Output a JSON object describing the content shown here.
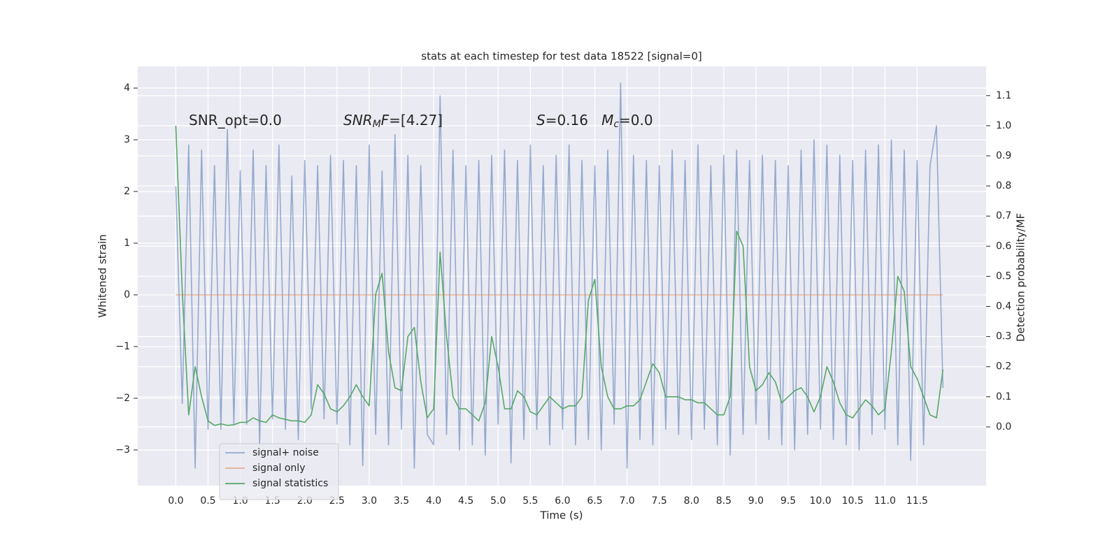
{
  "chart_data": {
    "type": "line",
    "title": "stats at each timestep for test data 18522 [signal=0]",
    "x_label": "Time (s)",
    "y_label": "Whitened strain",
    "y2_label": "Detection probability/MF",
    "annotations": [
      {
        "parts": [
          {
            "text": "SNR_opt=0.0",
            "italic": false,
            "sub": false
          }
        ]
      },
      {
        "parts": [
          {
            "text": "SNR",
            "italic": true,
            "sub": false
          },
          {
            "text": "M",
            "italic": true,
            "sub": true
          },
          {
            "text": "F",
            "italic": true,
            "sub": false
          },
          {
            "text": "=[4.27]",
            "italic": false,
            "sub": false
          }
        ]
      },
      {
        "parts": [
          {
            "text": "S",
            "italic": true,
            "sub": false
          },
          {
            "text": "=0.16   ",
            "italic": false,
            "sub": false
          },
          {
            "text": "M",
            "italic": true,
            "sub": false
          },
          {
            "text": "c",
            "italic": true,
            "sub": true
          },
          {
            "text": "=0.0",
            "italic": false,
            "sub": false
          }
        ]
      }
    ],
    "x": [
      0,
      0.1,
      0.2,
      0.3,
      0.4,
      0.5,
      0.6,
      0.7,
      0.8,
      0.9,
      1,
      1.1,
      1.2,
      1.3,
      1.4,
      1.5,
      1.6,
      1.7,
      1.8,
      1.9,
      2,
      2.1,
      2.2,
      2.3,
      2.4,
      2.5,
      2.6,
      2.7,
      2.8,
      2.9,
      3,
      3.1,
      3.2,
      3.3,
      3.4,
      3.5,
      3.6,
      3.7,
      3.8,
      3.9,
      4,
      4.1,
      4.2,
      4.3,
      4.4,
      4.5,
      4.6,
      4.7,
      4.8,
      4.9,
      5,
      5.1,
      5.2,
      5.3,
      5.4,
      5.5,
      5.6,
      5.7,
      5.8,
      5.9,
      6,
      6.1,
      6.2,
      6.3,
      6.4,
      6.5,
      6.6,
      6.7,
      6.8,
      6.9,
      7,
      7.1,
      7.2,
      7.3,
      7.4,
      7.5,
      7.6,
      7.7,
      7.8,
      7.9,
      8,
      8.1,
      8.2,
      8.3,
      8.4,
      8.5,
      8.6,
      8.7,
      8.8,
      8.9,
      9,
      9.1,
      9.2,
      9.3,
      9.4,
      9.5,
      9.6,
      9.7,
      9.8,
      9.9,
      10,
      10.1,
      10.2,
      10.3,
      10.4,
      10.5,
      10.6,
      10.7,
      10.8,
      10.9,
      11,
      11.1,
      11.2,
      11.3,
      11.4,
      11.5,
      11.6,
      11.7,
      11.8,
      11.9
    ],
    "series": [
      {
        "name": "signal+ noise",
        "color": "#4c72b0",
        "alpha": 0.55,
        "axis": "y",
        "values": [
          2.1,
          -2.1,
          2.9,
          -3.35,
          2.8,
          -2.6,
          2.5,
          -2.6,
          3.2,
          -2.5,
          2.4,
          -2.5,
          2.8,
          -2.9,
          2.5,
          -2.4,
          2.9,
          -2.6,
          2.3,
          -2.8,
          2.6,
          -2.2,
          2.5,
          -2.4,
          2.7,
          -2.5,
          2.6,
          -2.9,
          2.5,
          -3.3,
          2.9,
          -2.7,
          2.4,
          -2.9,
          3.1,
          -2.6,
          2.7,
          -3.35,
          2.5,
          -2.7,
          -2.9,
          3.85,
          -2.7,
          2.8,
          -3.0,
          2.5,
          -2.9,
          2.6,
          -3.1,
          2.7,
          -2.5,
          2.8,
          -3.25,
          2.6,
          -2.8,
          2.9,
          -2.6,
          2.5,
          -2.9,
          2.7,
          -2.6,
          2.9,
          -2.9,
          2.6,
          -2.8,
          2.5,
          -3.0,
          2.8,
          -2.5,
          4.1,
          -3.35,
          2.7,
          -2.8,
          2.6,
          -2.9,
          2.5,
          -2.6,
          2.8,
          -2.7,
          2.6,
          -2.8,
          2.9,
          -2.6,
          2.5,
          -2.9,
          2.7,
          -3.1,
          2.8,
          -2.7,
          2.6,
          -2.5,
          2.7,
          -2.8,
          2.6,
          -2.9,
          2.5,
          -3.0,
          2.8,
          -2.7,
          3.0,
          -2.6,
          2.9,
          -2.8,
          2.7,
          -2.9,
          2.6,
          -3.0,
          2.8,
          -2.7,
          2.9,
          -2.6,
          3.0,
          -2.9,
          2.8,
          -3.2,
          2.6,
          -2.9,
          2.5,
          3.27,
          -1.8
        ]
      },
      {
        "name": "signal only",
        "color": "#dd8452",
        "alpha": 0.6,
        "axis": "y",
        "values": [
          0,
          0,
          0,
          0,
          0,
          0,
          0,
          0,
          0,
          0,
          0,
          0,
          0,
          0,
          0,
          0,
          0,
          0,
          0,
          0,
          0,
          0,
          0,
          0,
          0,
          0,
          0,
          0,
          0,
          0,
          0,
          0,
          0,
          0,
          0,
          0,
          0,
          0,
          0,
          0,
          0,
          0,
          0,
          0,
          0,
          0,
          0,
          0,
          0,
          0,
          0,
          0,
          0,
          0,
          0,
          0,
          0,
          0,
          0,
          0,
          0,
          0,
          0,
          0,
          0,
          0,
          0,
          0,
          0,
          0,
          0,
          0,
          0,
          0,
          0,
          0,
          0,
          0,
          0,
          0,
          0,
          0,
          0,
          0,
          0,
          0,
          0,
          0,
          0,
          0,
          0,
          0,
          0,
          0,
          0,
          0,
          0,
          0,
          0,
          0,
          0,
          0,
          0,
          0,
          0,
          0,
          0,
          0,
          0,
          0,
          0,
          0,
          0,
          0,
          0,
          0,
          0,
          0,
          0,
          0
        ]
      },
      {
        "name": "signal statistics",
        "color": "#55a868",
        "alpha": 1,
        "axis": "y2",
        "values": [
          1.0,
          0.45,
          0.04,
          0.2,
          0.1,
          0.02,
          0.005,
          0.01,
          0.005,
          0.007,
          0.015,
          0.015,
          0.03,
          0.02,
          0.015,
          0.04,
          0.03,
          0.025,
          0.02,
          0.02,
          0.015,
          0.04,
          0.14,
          0.11,
          0.06,
          0.05,
          0.07,
          0.1,
          0.14,
          0.1,
          0.07,
          0.44,
          0.51,
          0.25,
          0.13,
          0.12,
          0.3,
          0.33,
          0.15,
          0.03,
          0.06,
          0.58,
          0.3,
          0.1,
          0.06,
          0.06,
          0.04,
          0.02,
          0.08,
          0.3,
          0.2,
          0.06,
          0.06,
          0.12,
          0.1,
          0.05,
          0.04,
          0.07,
          0.1,
          0.08,
          0.06,
          0.07,
          0.07,
          0.1,
          0.42,
          0.49,
          0.2,
          0.1,
          0.06,
          0.06,
          0.07,
          0.07,
          0.09,
          0.15,
          0.21,
          0.18,
          0.1,
          0.1,
          0.1,
          0.09,
          0.09,
          0.08,
          0.08,
          0.06,
          0.04,
          0.04,
          0.1,
          0.65,
          0.6,
          0.2,
          0.12,
          0.14,
          0.18,
          0.15,
          0.08,
          0.1,
          0.12,
          0.13,
          0.1,
          0.05,
          0.1,
          0.2,
          0.15,
          0.08,
          0.04,
          0.03,
          0.06,
          0.09,
          0.07,
          0.04,
          0.06,
          0.25,
          0.5,
          0.45,
          0.2,
          0.16,
          0.1,
          0.04,
          0.03,
          0.19
        ]
      }
    ],
    "xlim": [
      -0.59,
      12.57
    ],
    "ylim": [
      -3.69,
      4.42
    ],
    "y2lim": [
      -0.195,
      1.197
    ],
    "xticks": [
      {
        "value": 0,
        "label": "0.0"
      },
      {
        "value": 0.5,
        "label": "0.5"
      },
      {
        "value": 1,
        "label": "1.0"
      },
      {
        "value": 1.5,
        "label": "1.5"
      },
      {
        "value": 2,
        "label": "2.0"
      },
      {
        "value": 2.5,
        "label": "2.5"
      },
      {
        "value": 3,
        "label": "3.0"
      },
      {
        "value": 3.5,
        "label": "3.5"
      },
      {
        "value": 4,
        "label": "4.0"
      },
      {
        "value": 4.5,
        "label": "4.5"
      },
      {
        "value": 5,
        "label": "5.0"
      },
      {
        "value": 5.5,
        "label": "5.5"
      },
      {
        "value": 6,
        "label": "6.0"
      },
      {
        "value": 6.5,
        "label": "6.5"
      },
      {
        "value": 7,
        "label": "7.0"
      },
      {
        "value": 7.5,
        "label": "7.5"
      },
      {
        "value": 8,
        "label": "8.0"
      },
      {
        "value": 8.5,
        "label": "8.5"
      },
      {
        "value": 9,
        "label": "9.0"
      },
      {
        "value": 9.5,
        "label": "9.5"
      },
      {
        "value": 10,
        "label": "10.0"
      },
      {
        "value": 10.5,
        "label": "10.5"
      },
      {
        "value": 11,
        "label": "11.0"
      },
      {
        "value": 11.5,
        "label": "11.5"
      }
    ],
    "yticks": [
      {
        "value": -3,
        "label": "−3"
      },
      {
        "value": -2,
        "label": "−2"
      },
      {
        "value": -1,
        "label": "−1"
      },
      0,
      1,
      2,
      3,
      4
    ],
    "y2ticks": [
      {
        "value": 0,
        "label": "0.0"
      },
      {
        "value": 0.1,
        "label": "0.1"
      },
      {
        "value": 0.2,
        "label": "0.2"
      },
      {
        "value": 0.3,
        "label": "0.3"
      },
      {
        "value": 0.4,
        "label": "0.4"
      },
      {
        "value": 0.5,
        "label": "0.5"
      },
      {
        "value": 0.6,
        "label": "0.6"
      },
      {
        "value": 0.7,
        "label": "0.7"
      },
      {
        "value": 0.8,
        "label": "0.8"
      },
      {
        "value": 0.9,
        "label": "0.9"
      },
      {
        "value": 1,
        "label": "1.0"
      },
      {
        "value": 1.1,
        "label": "1.1"
      }
    ],
    "grid": true,
    "legend": "lower left"
  }
}
